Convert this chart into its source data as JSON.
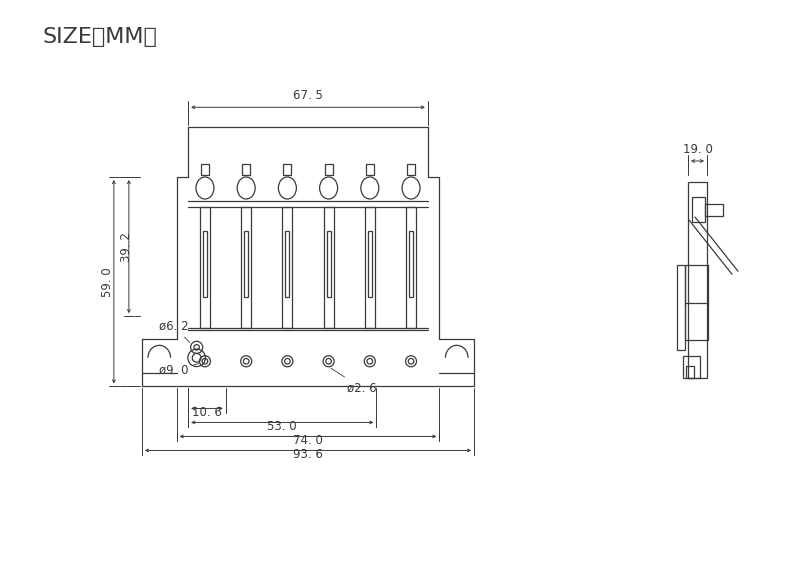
{
  "title": "SIZE（MM）",
  "bg_color": "#ffffff",
  "line_color": "#3a3a3a",
  "dim_color": "#3a3a3a",
  "font_size_title": 16,
  "font_size_dim": 8.5,
  "dimensions": {
    "top_width": "67. 5",
    "side_width": "19. 0",
    "height_left": "59. 0",
    "height_inner": "39. 2",
    "hole1": "ø6. 2",
    "hole2": "ø9. 0",
    "hole3": "ø2. 6",
    "bottom1": "10. 6",
    "bottom2": "53. 0",
    "bottom3": "74. 0",
    "bottom4": "93. 6"
  },
  "scale": 3.55,
  "ox": 308,
  "oy_base": 390
}
